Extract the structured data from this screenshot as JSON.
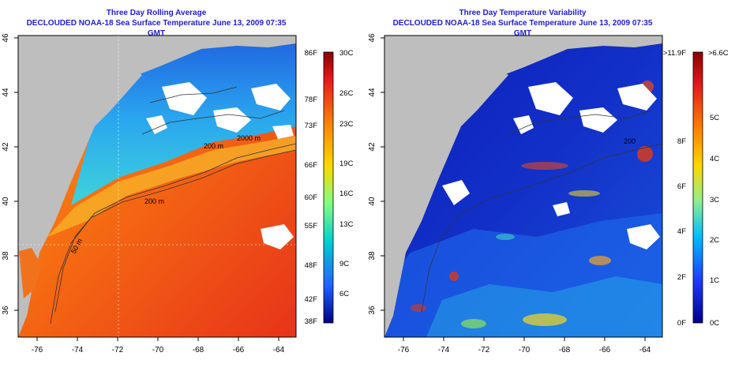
{
  "left_panel": {
    "title_line1": "Three Day Rolling Average",
    "title_line2": "DECLOUDED NOAA-18 Sea Surface Temperature June 13, 2009 07:35 GMT",
    "contour_labels": [
      "2000 m",
      "200 m",
      "200 m",
      "50 m"
    ],
    "colorbar": {
      "celsius_labels": [
        "30C",
        "26C",
        "23C",
        "19C",
        "16C",
        "13C",
        "9C",
        "6C"
      ],
      "fahrenheit_labels": [
        "86F",
        "78F",
        "73F",
        "66F",
        "60F",
        "55F",
        "48F",
        "42F",
        "38F"
      ]
    }
  },
  "right_panel": {
    "title_line1": "Three Day Temperature Variability",
    "title_line2": "DECLOUDED NOAA-18 Sea Surface Temperature June 13, 2009 07:35 GMT",
    "contour_labels": [
      "200"
    ],
    "colorbar": {
      "celsius_labels": [
        ">6.6C",
        "5C",
        "4C",
        "3C",
        "2C",
        "1C",
        "0C"
      ],
      "fahrenheit_labels": [
        ">11.9F",
        "8F",
        "6F",
        "4F",
        "2F",
        "0F"
      ]
    }
  },
  "axes": {
    "x_ticks": [
      "-76",
      "-74",
      "-72",
      "-70",
      "-68",
      "-66",
      "-64"
    ],
    "y_ticks": [
      "46",
      "44",
      "42",
      "40",
      "38",
      "36"
    ]
  },
  "colors": {
    "land": "#bebebe",
    "title": "#1d1dd6",
    "cloud": "#ffffff"
  }
}
